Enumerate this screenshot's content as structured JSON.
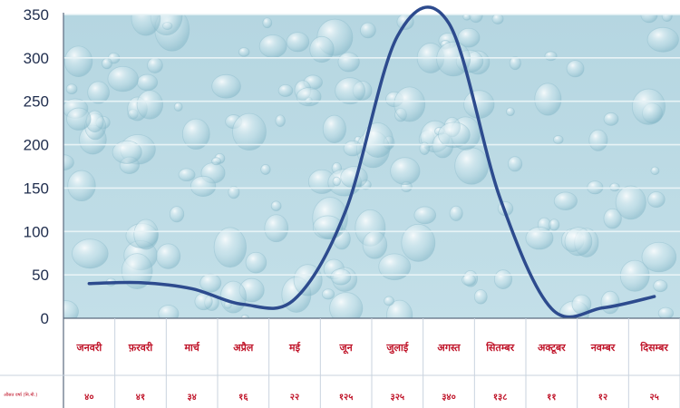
{
  "chart_data": {
    "type": "line",
    "categories": [
      "जनवरी",
      "फ़रवरी",
      "मार्च",
      "अप्रैल",
      "मई",
      "जून",
      "जुलाई",
      "अगस्त",
      "सितम्बर",
      "अक्टूबर",
      "नवम्बर",
      "दिसम्बर"
    ],
    "values": [
      40,
      41,
      34,
      16,
      22,
      125,
      325,
      340,
      138,
      11,
      12,
      25
    ],
    "value_labels": [
      "४०",
      "४१",
      "३४",
      "१६",
      "२२",
      "१२५",
      "३२५",
      "३४०",
      "१३८",
      "११",
      "१२",
      "२५"
    ],
    "row_label": "औसत वर्षा (मि.मी.)",
    "ylim": [
      0,
      350
    ],
    "yticks": [
      0,
      50,
      100,
      150,
      200,
      250,
      300,
      350
    ],
    "grid": true,
    "legend": "none",
    "colors": {
      "line": "#2d4b8e",
      "plot_bg": "#bcdbe5",
      "text_red": "#c0152a",
      "axis_text": "#1f2d4d",
      "grid": "#e8f3f6"
    }
  }
}
